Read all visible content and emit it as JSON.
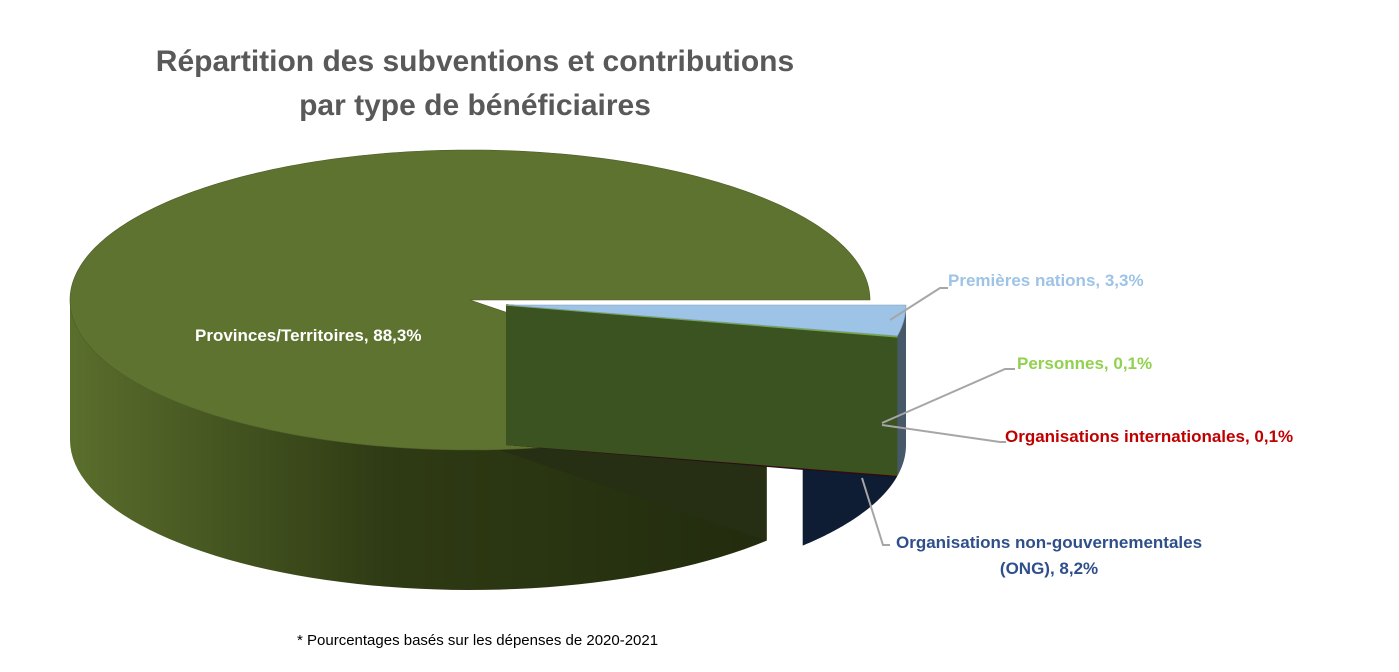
{
  "chart_data": {
    "type": "pie",
    "title_line1": "Répartition des subventions et contributions",
    "title_line2": "par type de bénéficiaires",
    "slices": [
      {
        "label": "Premières nations, 3,3%",
        "name": "Premières nations",
        "value": 3.3,
        "color": "#9DC3E6",
        "exploded": true
      },
      {
        "label": "Personnes, 0,1%",
        "name": "Personnes",
        "value": 0.1,
        "color": "#92D050",
        "exploded": true
      },
      {
        "label": "Organisations internationales, 0,1%",
        "name": "Organisations internationales",
        "value": 0.1,
        "color": "#C00000",
        "exploded": true
      },
      {
        "label_line1": "Organisations non-gouvernementales",
        "label_line2": "(ONG), 8,2%",
        "name": "Organisations non-gouvernementales (ONG)",
        "value": 8.2,
        "color": "#203F74",
        "exploded": true
      },
      {
        "label": "Provinces/Territoires, 88,3%",
        "name": "Provinces/Territoires",
        "value": 88.3,
        "color": "#5F7330",
        "exploded": false
      }
    ],
    "label_colors": [
      "#9DC3E6",
      "#92D050",
      "#C00000",
      "#2F4F8A",
      "#FFFFFF"
    ],
    "footnote": "* Pourcentages basés sur les dépenses de 2020-2021"
  }
}
